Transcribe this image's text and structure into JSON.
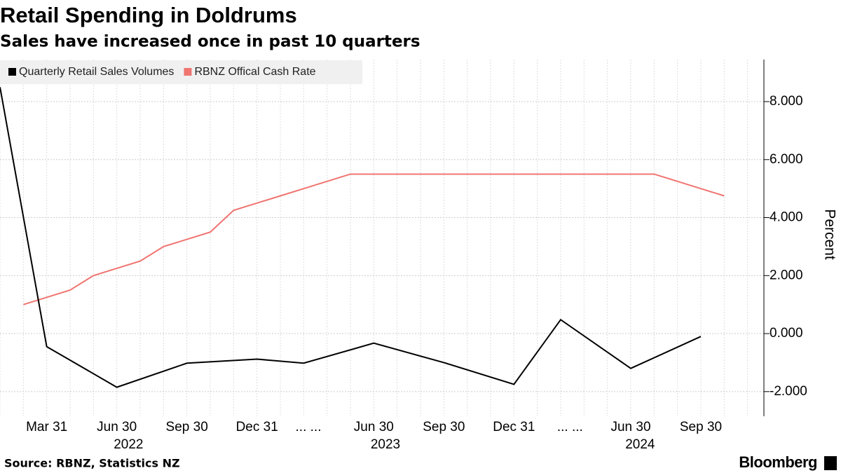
{
  "chart_data": {
    "type": "line",
    "title": "Retail Spending in Doldrums",
    "subtitle": "Sales have increased once in past 10 quarters",
    "y_axis_label": "Percent",
    "source": "Source: RBNZ, Statistics NZ",
    "brand": "Bloomberg",
    "xlim": [
      0,
      32.7
    ],
    "xticks": [
      {
        "value": 2,
        "label": "Mar 31"
      },
      {
        "value": 5,
        "label": "Jun 30"
      },
      {
        "value": 8,
        "label": "Sep 30"
      },
      {
        "value": 11,
        "label": "Dec 31"
      },
      {
        "value": 13.2,
        "label": "... ..."
      },
      {
        "value": 16,
        "label": "Jun 30"
      },
      {
        "value": 19,
        "label": "Sep 30"
      },
      {
        "value": 22,
        "label": "Dec 31"
      },
      {
        "value": 24.4,
        "label": "... ..."
      },
      {
        "value": 27,
        "label": "Jun 30"
      },
      {
        "value": 30,
        "label": "Sep 30"
      }
    ],
    "year_labels": [
      "2022",
      "2023",
      "2024"
    ],
    "ylim": [
      -2.85,
      9.45
    ],
    "yticks": [
      {
        "value": -2,
        "label": "-2.000"
      },
      {
        "value": 0,
        "label": "0.000"
      },
      {
        "value": 2,
        "label": "2.000"
      },
      {
        "value": 4,
        "label": "4.000"
      },
      {
        "value": 6,
        "label": "6.000"
      },
      {
        "value": 8,
        "label": "8.000"
      }
    ],
    "grid": true,
    "legend": "top-left",
    "series": [
      {
        "name": "Quarterly Retail Sales Volumes",
        "color": "#000000",
        "x": [
          0,
          2,
          5,
          8,
          11,
          13,
          16,
          19,
          22,
          24,
          27,
          30
        ],
        "values": [
          8.5,
          -0.45,
          -1.85,
          -1.02,
          -0.88,
          -1.02,
          -0.33,
          -1.0,
          -1.75,
          0.48,
          -1.2,
          -0.1
        ]
      },
      {
        "name": "RBNZ Offical Cash Rate",
        "color": "#f07470",
        "x": [
          1,
          2,
          3,
          4,
          5,
          6,
          7,
          8,
          9,
          10,
          11,
          12,
          13,
          14,
          15,
          28,
          29,
          30,
          31
        ],
        "values": [
          1.0,
          1.25,
          1.5,
          2.0,
          2.25,
          2.5,
          3.0,
          3.25,
          3.5,
          4.25,
          4.5,
          4.75,
          5.0,
          5.25,
          5.5,
          5.5,
          5.25,
          5.0,
          4.75
        ]
      }
    ]
  }
}
